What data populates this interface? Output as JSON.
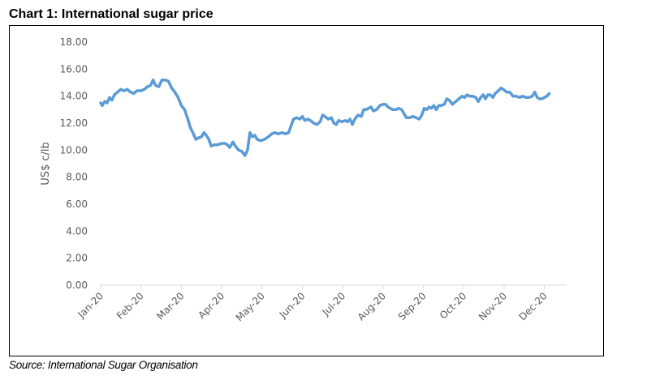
{
  "header": {
    "title": "Chart 1: International sugar price"
  },
  "footer": {
    "source": "Source: International Sugar Organisation"
  },
  "colors": {
    "line": "#5B9BD5",
    "axis": "#D9D9D9",
    "tick_text": "#595959"
  },
  "chart_data": {
    "type": "line",
    "title": "Chart 1: International sugar price",
    "xlabel": "",
    "ylabel": "US$ c/lb",
    "ylim": [
      0,
      18
    ],
    "yticks": [
      "0.00",
      "2.00",
      "4.00",
      "6.00",
      "8.00",
      "10.00",
      "12.00",
      "14.00",
      "16.00",
      "18.00"
    ],
    "xticks": [
      "Jan-20",
      "Feb-20",
      "Mar-20",
      "Apr-20",
      "May-20",
      "Jun-20",
      "Jul-20",
      "Aug-20",
      "Sep-20",
      "Oct-20",
      "Nov-20",
      "Dec-20"
    ],
    "x_range_months": [
      0,
      11.55
    ],
    "grid": false,
    "legend": "none",
    "series": [
      {
        "name": "International sugar price (US$ c/lb)",
        "points": [
          [
            0.0,
            13.5
          ],
          [
            0.04,
            13.3
          ],
          [
            0.1,
            13.6
          ],
          [
            0.16,
            13.5
          ],
          [
            0.22,
            13.9
          ],
          [
            0.28,
            13.7
          ],
          [
            0.34,
            14.1
          ],
          [
            0.42,
            14.3
          ],
          [
            0.5,
            14.5
          ],
          [
            0.58,
            14.4
          ],
          [
            0.66,
            14.5
          ],
          [
            0.74,
            14.3
          ],
          [
            0.82,
            14.2
          ],
          [
            0.9,
            14.4
          ],
          [
            1.0,
            14.4
          ],
          [
            1.08,
            14.5
          ],
          [
            1.16,
            14.7
          ],
          [
            1.24,
            14.8
          ],
          [
            1.3,
            15.2
          ],
          [
            1.36,
            14.8
          ],
          [
            1.44,
            14.7
          ],
          [
            1.52,
            15.2
          ],
          [
            1.6,
            15.2
          ],
          [
            1.68,
            15.1
          ],
          [
            1.76,
            14.6
          ],
          [
            1.84,
            14.3
          ],
          [
            1.92,
            13.9
          ],
          [
            2.0,
            13.3
          ],
          [
            2.08,
            13.0
          ],
          [
            2.16,
            12.3
          ],
          [
            2.22,
            11.7
          ],
          [
            2.3,
            11.2
          ],
          [
            2.36,
            10.8
          ],
          [
            2.42,
            10.9
          ],
          [
            2.5,
            11.0
          ],
          [
            2.56,
            11.3
          ],
          [
            2.62,
            11.1
          ],
          [
            2.68,
            10.8
          ],
          [
            2.74,
            10.3
          ],
          [
            2.82,
            10.4
          ],
          [
            2.9,
            10.4
          ],
          [
            3.0,
            10.5
          ],
          [
            3.08,
            10.5
          ],
          [
            3.14,
            10.4
          ],
          [
            3.2,
            10.2
          ],
          [
            3.28,
            10.6
          ],
          [
            3.34,
            10.3
          ],
          [
            3.42,
            10.0
          ],
          [
            3.5,
            9.9
          ],
          [
            3.58,
            9.6
          ],
          [
            3.64,
            10.0
          ],
          [
            3.7,
            11.3
          ],
          [
            3.76,
            11.0
          ],
          [
            3.82,
            11.1
          ],
          [
            3.88,
            10.8
          ],
          [
            3.96,
            10.7
          ],
          [
            4.06,
            10.8
          ],
          [
            4.16,
            11.0
          ],
          [
            4.24,
            11.2
          ],
          [
            4.32,
            11.3
          ],
          [
            4.4,
            11.2
          ],
          [
            4.5,
            11.3
          ],
          [
            4.58,
            11.2
          ],
          [
            4.66,
            11.3
          ],
          [
            4.72,
            11.8
          ],
          [
            4.78,
            12.3
          ],
          [
            4.86,
            12.4
          ],
          [
            4.94,
            12.3
          ],
          [
            5.0,
            12.5
          ],
          [
            5.06,
            12.2
          ],
          [
            5.14,
            12.3
          ],
          [
            5.2,
            12.2
          ],
          [
            5.28,
            12.0
          ],
          [
            5.36,
            11.9
          ],
          [
            5.44,
            12.1
          ],
          [
            5.5,
            12.6
          ],
          [
            5.56,
            12.5
          ],
          [
            5.64,
            12.3
          ],
          [
            5.72,
            12.4
          ],
          [
            5.78,
            12.0
          ],
          [
            5.84,
            11.9
          ],
          [
            5.9,
            12.2
          ],
          [
            5.98,
            12.1
          ],
          [
            6.06,
            12.2
          ],
          [
            6.12,
            12.1
          ],
          [
            6.18,
            12.3
          ],
          [
            6.24,
            11.9
          ],
          [
            6.3,
            12.3
          ],
          [
            6.38,
            12.6
          ],
          [
            6.46,
            12.5
          ],
          [
            6.52,
            13.0
          ],
          [
            6.58,
            13.0
          ],
          [
            6.64,
            13.1
          ],
          [
            6.7,
            13.2
          ],
          [
            6.76,
            12.9
          ],
          [
            6.84,
            13.0
          ],
          [
            6.92,
            13.3
          ],
          [
            7.0,
            13.4
          ],
          [
            7.06,
            13.4
          ],
          [
            7.12,
            13.2
          ],
          [
            7.18,
            13.1
          ],
          [
            7.24,
            13.0
          ],
          [
            7.32,
            13.0
          ],
          [
            7.38,
            13.1
          ],
          [
            7.46,
            13.0
          ],
          [
            7.52,
            12.7
          ],
          [
            7.58,
            12.4
          ],
          [
            7.66,
            12.4
          ],
          [
            7.74,
            12.5
          ],
          [
            7.82,
            12.4
          ],
          [
            7.9,
            12.3
          ],
          [
            7.96,
            12.6
          ],
          [
            8.02,
            13.1
          ],
          [
            8.08,
            13.0
          ],
          [
            8.14,
            13.2
          ],
          [
            8.2,
            13.1
          ],
          [
            8.26,
            13.3
          ],
          [
            8.32,
            13.0
          ],
          [
            8.38,
            13.3
          ],
          [
            8.44,
            13.3
          ],
          [
            8.52,
            13.4
          ],
          [
            8.58,
            13.8
          ],
          [
            8.64,
            13.7
          ],
          [
            8.72,
            13.4
          ],
          [
            8.8,
            13.6
          ],
          [
            8.88,
            13.8
          ],
          [
            8.96,
            14.0
          ],
          [
            9.02,
            13.9
          ],
          [
            9.08,
            14.1
          ],
          [
            9.14,
            14.0
          ],
          [
            9.22,
            14.0
          ],
          [
            9.3,
            13.9
          ],
          [
            9.36,
            13.6
          ],
          [
            9.42,
            13.9
          ],
          [
            9.48,
            14.1
          ],
          [
            9.54,
            13.8
          ],
          [
            9.6,
            14.1
          ],
          [
            9.66,
            14.1
          ],
          [
            9.72,
            13.9
          ],
          [
            9.78,
            14.2
          ],
          [
            9.86,
            14.4
          ],
          [
            9.92,
            14.6
          ],
          [
            9.98,
            14.5
          ],
          [
            10.06,
            14.3
          ],
          [
            10.14,
            14.3
          ],
          [
            10.22,
            14.0
          ],
          [
            10.3,
            14.0
          ],
          [
            10.38,
            13.9
          ],
          [
            10.46,
            14.0
          ],
          [
            10.54,
            13.9
          ],
          [
            10.62,
            13.9
          ],
          [
            10.7,
            14.0
          ],
          [
            10.76,
            14.3
          ],
          [
            10.82,
            13.9
          ],
          [
            10.88,
            13.8
          ],
          [
            10.94,
            13.8
          ],
          [
            11.0,
            13.9
          ],
          [
            11.06,
            14.0
          ],
          [
            11.12,
            14.2
          ]
        ]
      }
    ]
  }
}
